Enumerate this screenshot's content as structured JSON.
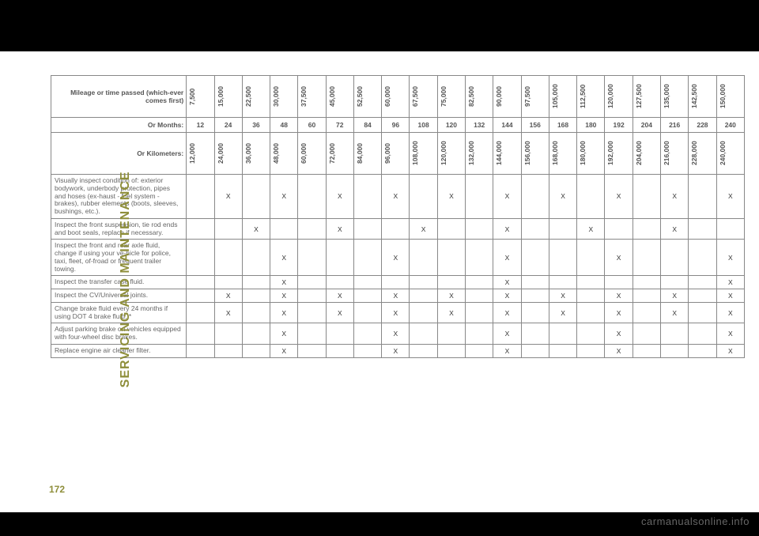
{
  "sideLabel": "SERVICING AND MAINTENANCE",
  "pageNumber": "172",
  "watermark": "carmanualsonline.info",
  "headers": {
    "mileage": "Mileage or time passed (which-ever comes first)",
    "months": "Or Months:",
    "km": "Or Kilometers:"
  },
  "mileageValues": [
    "7,500",
    "15,000",
    "22,500",
    "30,000",
    "37,500",
    "45,000",
    "52,500",
    "60,000",
    "67,500",
    "75,000",
    "82,500",
    "90,000",
    "97,500",
    "105,000",
    "112,500",
    "120,000",
    "127,500",
    "135,000",
    "142,500",
    "150,000"
  ],
  "monthValues": [
    "12",
    "24",
    "36",
    "48",
    "60",
    "72",
    "84",
    "96",
    "108",
    "120",
    "132",
    "144",
    "156",
    "168",
    "180",
    "192",
    "204",
    "216",
    "228",
    "240"
  ],
  "kmValues": [
    "12,000",
    "24,000",
    "36,000",
    "48,000",
    "60,000",
    "72,000",
    "84,000",
    "96,000",
    "108,000",
    "120,000",
    "132,000",
    "144,000",
    "156,000",
    "168,000",
    "180,000",
    "192,000",
    "204,000",
    "216,000",
    "228,000",
    "240,000"
  ],
  "rows": [
    {
      "desc": "Visually inspect condition of: exterior bodywork, underbody protection, pipes and hoses (ex-haust - fuel system - brakes), rubber elements (boots, sleeves, bushings, etc.).",
      "marks": [
        "",
        "X",
        "",
        "X",
        "",
        "X",
        "",
        "X",
        "",
        "X",
        "",
        "X",
        "",
        "X",
        "",
        "X",
        "",
        "X",
        "",
        "X"
      ]
    },
    {
      "desc": "Inspect the front suspension, tie rod ends and boot seals, replace if necessary.",
      "marks": [
        "",
        "",
        "X",
        "",
        "",
        "X",
        "",
        "",
        "X",
        "",
        "",
        "X",
        "",
        "",
        "X",
        "",
        "",
        "X",
        "",
        ""
      ]
    },
    {
      "desc": "Inspect the front and rear axle fluid, change if using your ve-hicle for police, taxi, fleet, of-froad or frequent trailer towing.",
      "marks": [
        "",
        "",
        "",
        "X",
        "",
        "",
        "",
        "X",
        "",
        "",
        "",
        "X",
        "",
        "",
        "",
        "X",
        "",
        "",
        "",
        "X"
      ]
    },
    {
      "desc": "Inspect the transfer case fluid.",
      "marks": [
        "",
        "",
        "",
        "X",
        "",
        "",
        "",
        "",
        "",
        "",
        "",
        "X",
        "",
        "",
        "",
        "",
        "",
        "",
        "",
        "X"
      ]
    },
    {
      "desc": "Inspect the CV/Universal joints.",
      "marks": [
        "",
        "X",
        "",
        "X",
        "",
        "X",
        "",
        "X",
        "",
        "X",
        "",
        "X",
        "",
        "X",
        "",
        "X",
        "",
        "X",
        "",
        "X"
      ]
    },
    {
      "desc": "Change brake fluid every 24 months if using DOT 4 brake fluid. *",
      "marks": [
        "",
        "X",
        "",
        "X",
        "",
        "X",
        "",
        "X",
        "",
        "X",
        "",
        "X",
        "",
        "X",
        "",
        "X",
        "",
        "X",
        "",
        "X"
      ]
    },
    {
      "desc": "Adjust parking brake on vehicles equipped with four-wheel disc brakes.",
      "marks": [
        "",
        "",
        "",
        "X",
        "",
        "",
        "",
        "X",
        "",
        "",
        "",
        "X",
        "",
        "",
        "",
        "X",
        "",
        "",
        "",
        "X"
      ]
    },
    {
      "desc": "Replace engine air cleaner filter.",
      "marks": [
        "",
        "",
        "",
        "X",
        "",
        "",
        "",
        "X",
        "",
        "",
        "",
        "X",
        "",
        "",
        "",
        "X",
        "",
        "",
        "",
        "X"
      ]
    }
  ],
  "styling": {
    "sideLabelColor": "#8e8e3a",
    "borderColor": "#888888",
    "headerTextColor": "#555555",
    "bodyTextColor": "#666666",
    "backgroundColor": "#ffffff",
    "blackBarColor": "#000000",
    "fontSizeCell": 8.5,
    "fontSizeSide": 16,
    "fontSizePageNum": 12,
    "pageWidth": 960,
    "pageHeight": 678
  }
}
